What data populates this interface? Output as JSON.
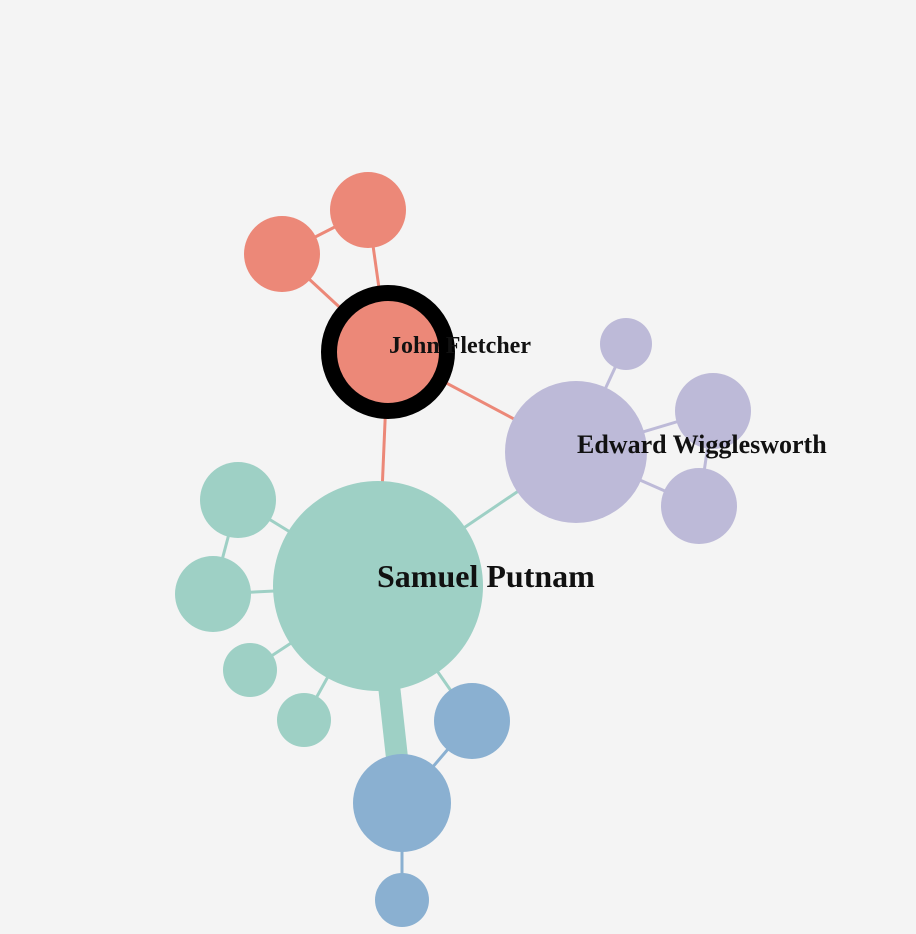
{
  "colors": {
    "background": "#f4f4f4",
    "group_red": "#ec8878",
    "group_purple": "#bdbad8",
    "group_teal": "#9ed0c5",
    "group_blue": "#8ab0d1",
    "selected_ring": "#000000",
    "label": "#111111"
  },
  "labels": {
    "john_fletcher": "John Fletcher",
    "edward_wigglesworth": "Edward Wigglesworth",
    "samuel_putnam": "Samuel Putnam"
  },
  "graph": {
    "selected_node": "john-fletcher",
    "nodes": [
      {
        "id": "john-fletcher",
        "group": "red",
        "label_key": "john_fletcher"
      },
      {
        "id": "red-neighbor-1",
        "group": "red"
      },
      {
        "id": "red-neighbor-2",
        "group": "red"
      },
      {
        "id": "edward-wigglesworth",
        "group": "purple",
        "label_key": "edward_wigglesworth"
      },
      {
        "id": "purple-neighbor-1",
        "group": "purple"
      },
      {
        "id": "purple-neighbor-2",
        "group": "purple"
      },
      {
        "id": "purple-neighbor-3",
        "group": "purple"
      },
      {
        "id": "samuel-putnam",
        "group": "teal",
        "label_key": "samuel_putnam"
      },
      {
        "id": "teal-neighbor-1",
        "group": "teal"
      },
      {
        "id": "teal-neighbor-2",
        "group": "teal"
      },
      {
        "id": "teal-neighbor-3",
        "group": "teal"
      },
      {
        "id": "teal-neighbor-4",
        "group": "teal"
      },
      {
        "id": "blue-hub",
        "group": "blue"
      },
      {
        "id": "blue-neighbor-1",
        "group": "blue"
      },
      {
        "id": "blue-neighbor-2",
        "group": "blue"
      }
    ],
    "edges": [
      {
        "source": "red-neighbor-1",
        "target": "red-neighbor-2"
      },
      {
        "source": "red-neighbor-1",
        "target": "john-fletcher"
      },
      {
        "source": "red-neighbor-2",
        "target": "john-fletcher"
      },
      {
        "source": "john-fletcher",
        "target": "edward-wigglesworth"
      },
      {
        "source": "john-fletcher",
        "target": "samuel-putnam"
      },
      {
        "source": "edward-wigglesworth",
        "target": "purple-neighbor-1"
      },
      {
        "source": "edward-wigglesworth",
        "target": "purple-neighbor-2"
      },
      {
        "source": "edward-wigglesworth",
        "target": "purple-neighbor-3"
      },
      {
        "source": "purple-neighbor-2",
        "target": "purple-neighbor-3"
      },
      {
        "source": "samuel-putnam",
        "target": "edward-wigglesworth"
      },
      {
        "source": "samuel-putnam",
        "target": "teal-neighbor-1"
      },
      {
        "source": "samuel-putnam",
        "target": "teal-neighbor-2"
      },
      {
        "source": "teal-neighbor-1",
        "target": "teal-neighbor-2"
      },
      {
        "source": "samuel-putnam",
        "target": "teal-neighbor-3"
      },
      {
        "source": "samuel-putnam",
        "target": "teal-neighbor-4"
      },
      {
        "source": "samuel-putnam",
        "target": "blue-hub"
      },
      {
        "source": "samuel-putnam",
        "target": "blue-neighbor-1"
      },
      {
        "source": "blue-hub",
        "target": "blue-neighbor-1"
      },
      {
        "source": "blue-hub",
        "target": "blue-neighbor-2"
      }
    ]
  }
}
